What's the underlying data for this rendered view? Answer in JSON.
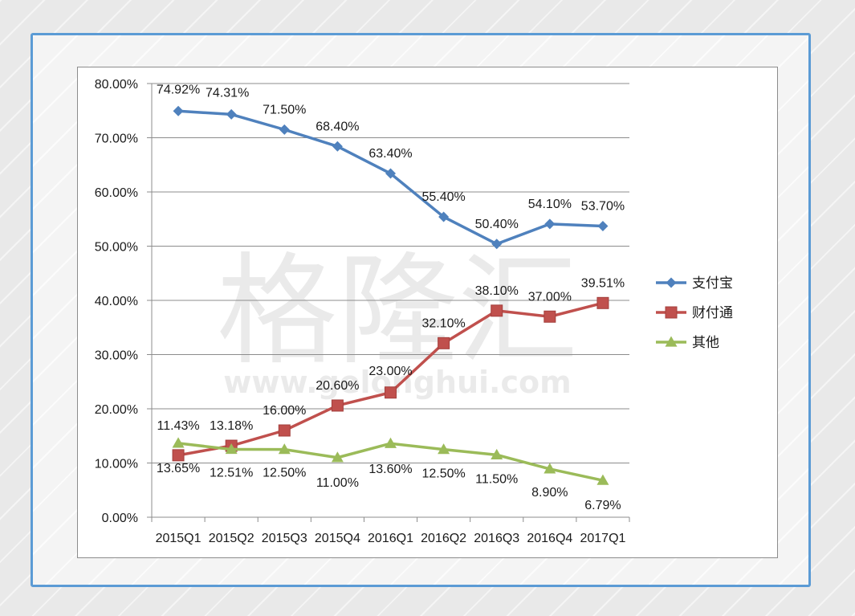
{
  "chart_data": {
    "type": "line",
    "categories": [
      "2015Q1",
      "2015Q2",
      "2015Q3",
      "2015Q4",
      "2016Q1",
      "2016Q2",
      "2016Q3",
      "2016Q4",
      "2017Q1"
    ],
    "y_ticks": [
      "0.00%",
      "10.00%",
      "20.00%",
      "30.00%",
      "40.00%",
      "50.00%",
      "60.00%",
      "70.00%",
      "80.00%"
    ],
    "ylim": [
      0,
      80
    ],
    "grid": true,
    "legend_position": "right",
    "series": [
      {
        "name": "支付宝",
        "color": "#4f81bd",
        "marker": "diamond",
        "values": [
          74.92,
          74.31,
          71.5,
          68.4,
          63.4,
          55.4,
          50.4,
          54.1,
          53.7
        ],
        "labels": [
          "74.92%",
          "74.31%",
          "71.50%",
          "68.40%",
          "63.40%",
          "55.40%",
          "50.40%",
          "54.10%",
          "53.70%"
        ]
      },
      {
        "name": "财付通",
        "color": "#c0504d",
        "marker": "square",
        "values": [
          11.43,
          13.18,
          16.0,
          20.6,
          23.0,
          32.1,
          38.1,
          37.0,
          39.51
        ],
        "labels": [
          "11.43%",
          "13.18%",
          "16.00%",
          "20.60%",
          "23.00%",
          "32.10%",
          "38.10%",
          "37.00%",
          "39.51%"
        ]
      },
      {
        "name": "其他",
        "color": "#9bbb59",
        "marker": "triangle",
        "values": [
          13.65,
          12.51,
          12.5,
          11.0,
          13.6,
          12.5,
          11.5,
          8.9,
          6.79
        ],
        "labels": [
          "13.65%",
          "12.51%",
          "12.50%",
          "11.00%",
          "13.60%",
          "12.50%",
          "11.50%",
          "8.90%",
          "6.79%"
        ]
      }
    ]
  },
  "watermark": {
    "logo_text": "格隆汇",
    "url_text": "www.gelonghui.com"
  }
}
